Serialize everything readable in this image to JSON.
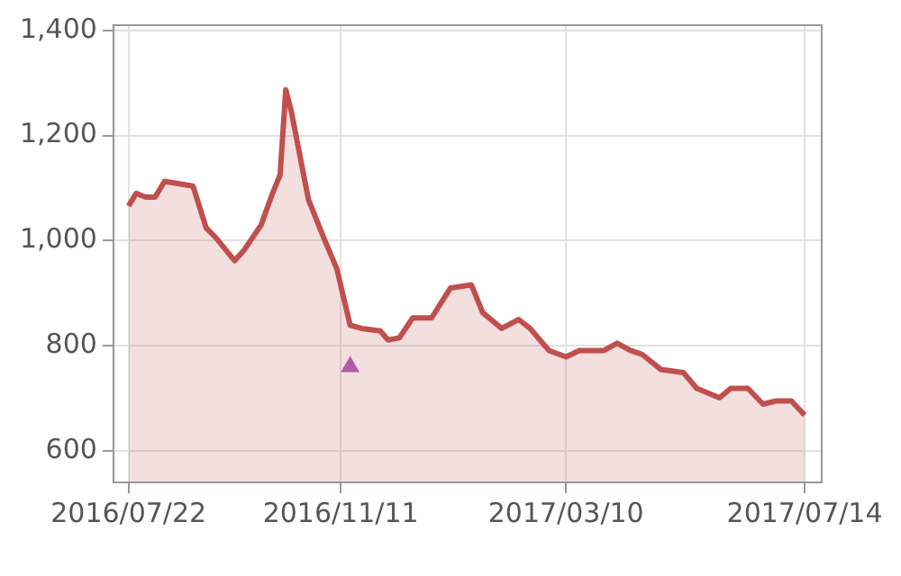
{
  "chart_data": {
    "type": "area",
    "xlim": [
      "2016-07-14",
      "2017-07-23"
    ],
    "ylim": [
      540,
      1410
    ],
    "xticks": [
      {
        "value": "2016-07-22",
        "label": "2016/07/22"
      },
      {
        "value": "2016-11-11",
        "label": "2016/11/11"
      },
      {
        "value": "2017-03-10",
        "label": "2017/03/10"
      },
      {
        "value": "2017-07-14",
        "label": "2017/07/14"
      }
    ],
    "yticks": [
      600,
      800,
      {
        "value": 1000,
        "label": "1,000"
      },
      {
        "value": 1200,
        "label": "1,200"
      },
      {
        "value": 1400,
        "label": "1,400"
      }
    ],
    "grid": true,
    "legend": false,
    "series": [
      {
        "color": "#c0504d",
        "marker": "none",
        "x": [
          "2016-07-22",
          "2016-07-26",
          "2016-07-31",
          "2016-08-05",
          "2016-08-10",
          "2016-08-15",
          "2016-08-25",
          "2016-09-01",
          "2016-09-06",
          "2016-09-16",
          "2016-09-21",
          "2016-09-30",
          "2016-10-06",
          "2016-10-10",
          "2016-10-13",
          "2016-10-16",
          "2016-10-25",
          "2016-11-02",
          "2016-11-09",
          "2016-11-16",
          "2016-11-22",
          "2016-12-02",
          "2016-12-06",
          "2016-12-12",
          "2016-12-19",
          "2016-12-29",
          "2017-01-08",
          "2017-01-19",
          "2017-01-25",
          "2017-02-04",
          "2017-02-13",
          "2017-02-19",
          "2017-03-01",
          "2017-03-10",
          "2017-03-17",
          "2017-03-30",
          "2017-04-06",
          "2017-04-13",
          "2017-04-19",
          "2017-04-29",
          "2017-05-11",
          "2017-05-18",
          "2017-05-30",
          "2017-06-05",
          "2017-06-14",
          "2017-06-22",
          "2017-06-29",
          "2017-07-07",
          "2017-07-14"
        ],
        "values": [
          1066,
          1090,
          1083,
          1083,
          1113,
          1110,
          1104,
          1024,
          1006,
          962,
          982,
          1030,
          1090,
          1125,
          1287,
          1245,
          1078,
          1006,
          946,
          839,
          833,
          828,
          811,
          815,
          853,
          853,
          910,
          916,
          863,
          833,
          850,
          833,
          791,
          779,
          791,
          791,
          805,
          791,
          784,
          755,
          749,
          719,
          701,
          719,
          719,
          689,
          695,
          695,
          668
        ]
      },
      {
        "type": "scatter",
        "color": "#b05cc0",
        "marker": "triangle",
        "x": [
          "2016-11-16"
        ],
        "values": [
          760
        ]
      }
    ]
  }
}
